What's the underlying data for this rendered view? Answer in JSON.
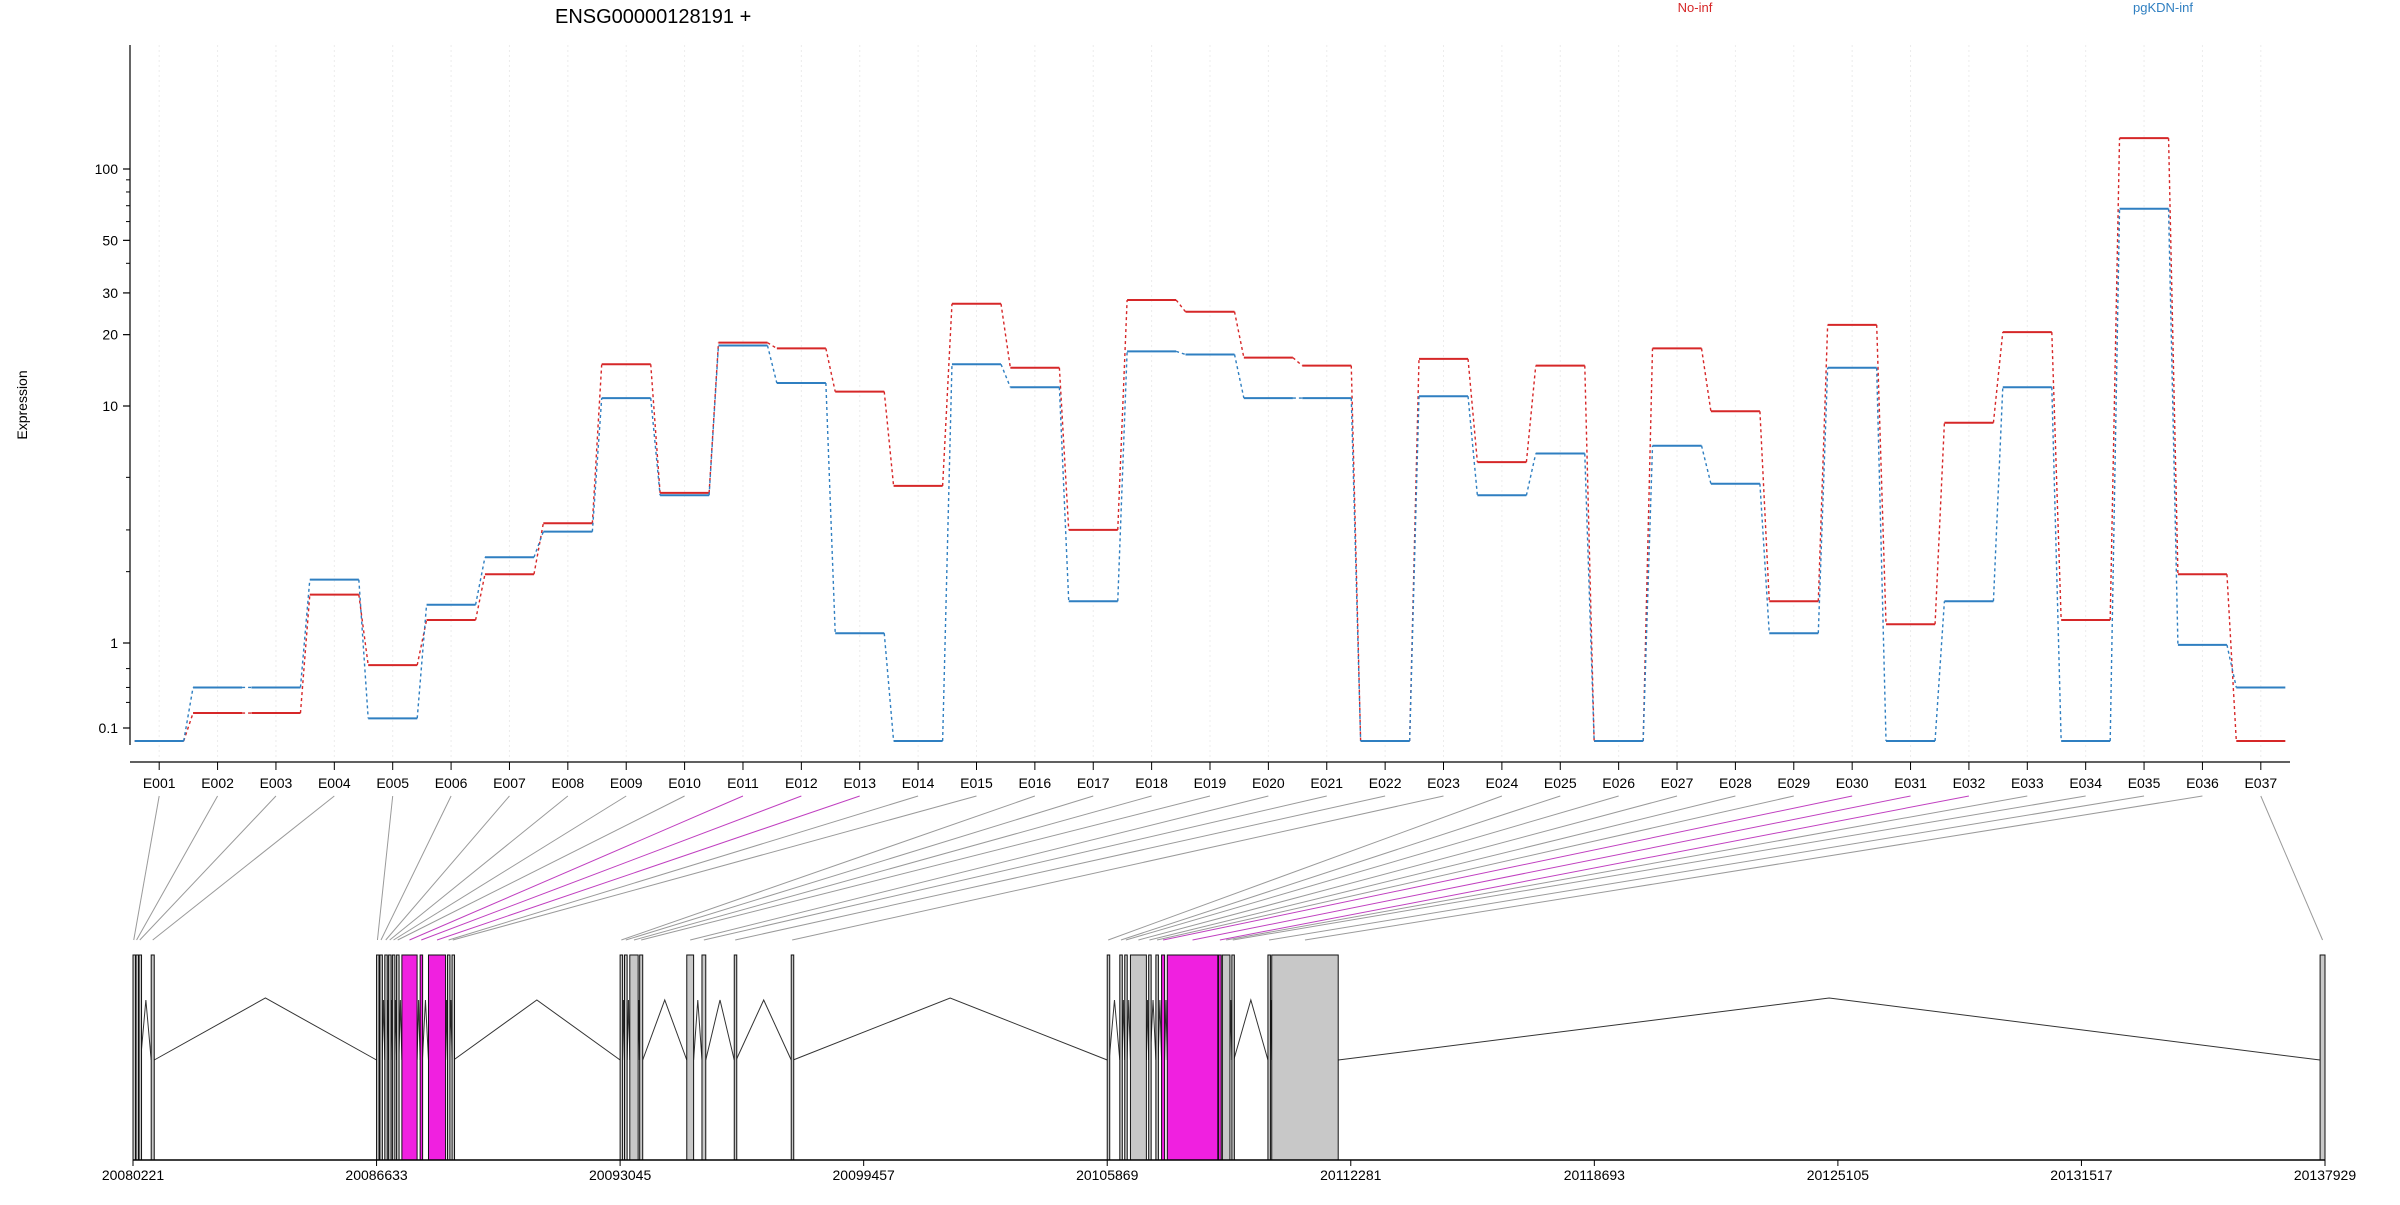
{
  "chart_data": {
    "type": "line",
    "title": "ENSG00000128191 +",
    "ylabel": "Expression",
    "yscale": "log",
    "legend_placement": "top",
    "categories": [
      "E001",
      "E002",
      "E003",
      "E004",
      "E005",
      "E006",
      "E007",
      "E008",
      "E009",
      "E010",
      "E011",
      "E012",
      "E013",
      "E014",
      "E015",
      "E016",
      "E017",
      "E018",
      "E019",
      "E020",
      "E021",
      "E022",
      "E023",
      "E024",
      "E025",
      "E026",
      "E027",
      "E028",
      "E029",
      "E030",
      "E031",
      "E032",
      "E033",
      "E034",
      "E035",
      "E036",
      "E037"
    ],
    "yticks": [
      "0.1",
      "1",
      "10",
      "20",
      "30",
      "50",
      "100"
    ],
    "series": [
      {
        "name": "No-inf",
        "color": "#d62728",
        "values": [
          0.05,
          0.15,
          0.15,
          1.6,
          0.55,
          1.25,
          1.95,
          3.2,
          15,
          4.3,
          18.5,
          17.5,
          11.5,
          4.6,
          27,
          14.5,
          3,
          28,
          25,
          16,
          14.8,
          0.05,
          15.8,
          5.8,
          14.8,
          0.05,
          17.5,
          9.5,
          1.5,
          22,
          1.2,
          8.5,
          20.5,
          1.25,
          135,
          1.95,
          0.05
        ]
      },
      {
        "name": "pgKDN-inf",
        "color": "#2f7fc1",
        "values": [
          0.05,
          0.3,
          0.3,
          1.85,
          0.13,
          1.45,
          2.3,
          2.95,
          10.8,
          4.2,
          18,
          12.5,
          1.1,
          0.05,
          15,
          12,
          1.5,
          17,
          16.5,
          10.8,
          10.8,
          0.05,
          11,
          4.2,
          6.3,
          0.05,
          6.8,
          4.7,
          1.1,
          14.5,
          0.05,
          1.5,
          12,
          0.05,
          68,
          0.95,
          0.3
        ]
      }
    ],
    "xlabel": "",
    "genomic_axis": {
      "tick_labels": [
        "20080221",
        "20086633",
        "20093045",
        "20099457",
        "20105869",
        "20112281",
        "20118693",
        "20125105",
        "20131517",
        "20137929"
      ],
      "tick_values": [
        20080221,
        20086633,
        20093045,
        20099457,
        20105869,
        20112281,
        20118693,
        20125105,
        20131517,
        20137929
      ]
    },
    "highlighted_exons": [
      "E011",
      "E012",
      "E013",
      "E030",
      "E031",
      "E032"
    ],
    "highlight_color": "#f020e0",
    "exon_color": "#c8c8c8"
  }
}
